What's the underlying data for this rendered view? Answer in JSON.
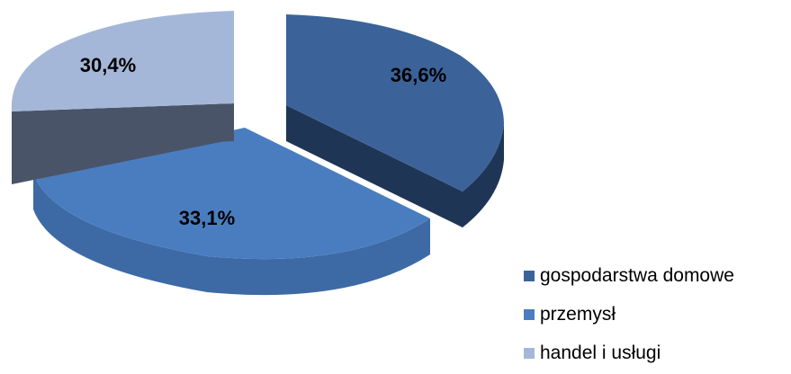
{
  "chart_data": {
    "type": "pie",
    "style": "3d-exploded",
    "categories": [
      "gospodarstwa domowe",
      "przemysł",
      "handel i usługi"
    ],
    "values": [
      36.6,
      33.1,
      30.4
    ],
    "data_labels": [
      "36,6%",
      "33,1%",
      "30,4%"
    ],
    "colors": [
      "#3b639a",
      "#4a7dc0",
      "#a5b7d8"
    ],
    "legend_position": "bottom-right",
    "legend": [
      {
        "label": "gospodarstwa domowe",
        "color": "#3b639a"
      },
      {
        "label": "przemysł",
        "color": "#4a7dc0"
      },
      {
        "label": "handel i usługi",
        "color": "#a5b7d8"
      }
    ]
  }
}
